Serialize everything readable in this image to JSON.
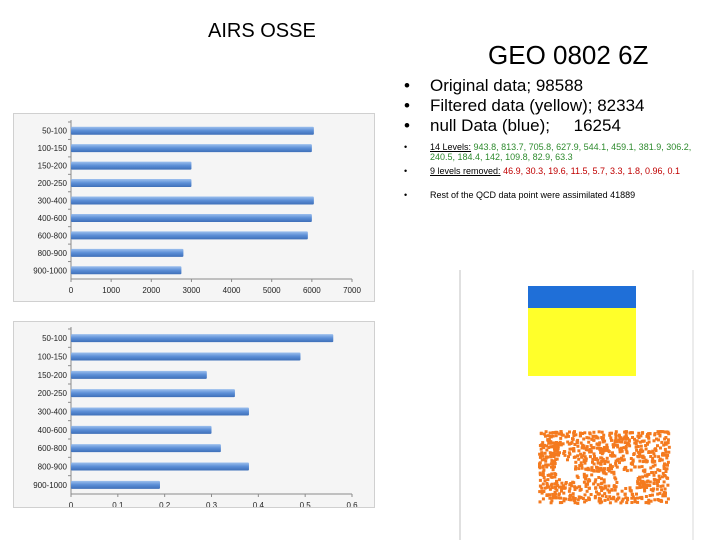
{
  "header": {
    "left_title": "AIRS OSSE",
    "right_title": "GEO 0802 6Z"
  },
  "bullets": {
    "original": "Original data; 98588",
    "filtered": "Filtered data (yellow); 82334",
    "null": "null Data (blue);     16254",
    "levels_label": "14 Levels:",
    "levels_values": "943.8, 813.7, 705.8, 627.9, 544.1,   459.1, 381.9, 306.2, 240.5, 184.4, 142, 109.8, 82.9, 63.3",
    "removed_label": "9 levels removed:",
    "removed_values": "46.9, 30.3, 19.6, 11.5, 5.7, 3.3, 1.8, 0.96, 0.1",
    "rest": "Rest of the QCD data point were assimilated 41889"
  },
  "colors": {
    "bar": "#5b8ed6",
    "yellow": "#ffff2a",
    "blue": "#1f6fd8",
    "orange": "#f47a1f",
    "green_text": "#2e8b2e",
    "red_text": "#c00000"
  },
  "chart_data": [
    {
      "type": "bar",
      "orientation": "horizontal",
      "categories": [
        "50-100",
        "100-150",
        "150-200",
        "200-250",
        "300-400",
        "400-600",
        "600-800",
        "800-900",
        "900-1000"
      ],
      "values": [
        6050,
        6000,
        3000,
        3000,
        6050,
        6000,
        5900,
        2800,
        2750
      ],
      "ticks": [
        "0",
        "1000",
        "2000",
        "3000",
        "4000",
        "5000",
        "6000",
        "7000"
      ],
      "xlim": [
        0,
        7000
      ]
    },
    {
      "type": "bar",
      "orientation": "horizontal",
      "categories": [
        "50-100",
        "100-150",
        "150-200",
        "200-250",
        "300-400",
        "400-600",
        "600-800",
        "800-900",
        "900-1000"
      ],
      "values": [
        0.56,
        0.49,
        0.29,
        0.35,
        0.38,
        0.3,
        0.32,
        0.38,
        0.19
      ],
      "ticks": [
        "0",
        "0.1",
        "0.2",
        "0.3",
        "0.4",
        "0.5",
        "0.6"
      ],
      "xlim": [
        0,
        0.6
      ]
    }
  ]
}
